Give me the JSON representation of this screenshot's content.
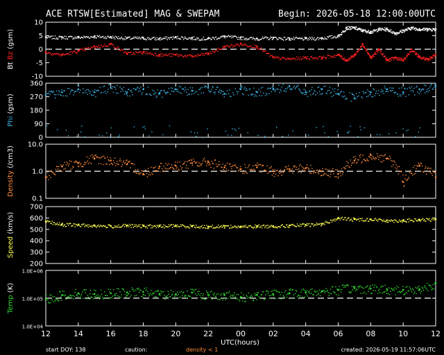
{
  "header": {
    "title": "ACE RTSW[Estimated] MAG & SWEPAM",
    "begin": "Begin: 2026-05-18 12:00:00UTC"
  },
  "footer": {
    "start_doy": "start DOY: 138",
    "caution": "caution:",
    "density_note": "density < 1",
    "created": "created: 2026-05-19 11:57:06UTC"
  },
  "colors": {
    "bt": "#ffffff",
    "bz": "#ff2020",
    "phi": "#3cb4e6",
    "density": "#ff8c3c",
    "speed": "#ffff50",
    "temp": "#32dc32"
  },
  "chart_data": {
    "type": "scatter",
    "x_ticks": [
      "12",
      "14",
      "16",
      "18",
      "20",
      "22",
      "00",
      "02",
      "04",
      "06",
      "08",
      "10",
      "12"
    ],
    "xlabel": "UTC(hours)",
    "x_range_hours": [
      0,
      24
    ],
    "panels": [
      {
        "id": "mag",
        "ylabel_parts": [
          {
            "text": "Bt",
            "color": "#ffffff"
          },
          {
            "text": "Bz",
            "color": "#ff2020"
          },
          {
            "text": "(gsm)",
            "color": "#ffffff"
          }
        ],
        "yticks": [
          "10",
          "5",
          "0",
          "-5",
          "-10"
        ],
        "ylim": [
          -10,
          10
        ],
        "log": false,
        "dashed_at": 0,
        "series": [
          {
            "name": "Bt",
            "color": "#ffffff",
            "x": [
              0,
              1,
              2,
              3,
              4,
              5,
              6,
              7,
              8,
              9,
              10,
              11,
              12,
              13,
              14,
              15,
              16,
              17,
              18,
              18.5,
              19,
              19.5,
              20,
              20.5,
              21,
              21.5,
              22,
              22.5,
              23,
              23.5,
              24
            ],
            "y": [
              4.5,
              4.5,
              4.5,
              4.8,
              4.6,
              4.2,
              4.2,
              4.0,
              4.5,
              4.2,
              4.0,
              4.8,
              4.3,
              4.0,
              4.3,
              4.0,
              4.0,
              4.2,
              5.0,
              8.0,
              8.0,
              7.0,
              6.5,
              7.5,
              7.5,
              6.0,
              7.0,
              8.0,
              7.5,
              7.5,
              7.5
            ]
          },
          {
            "name": "Bz",
            "color": "#ff2020",
            "x": [
              0,
              1,
              2,
              3,
              4,
              5,
              6,
              7,
              8,
              9,
              10,
              11,
              12,
              13,
              14,
              15,
              16,
              17,
              18,
              18.5,
              19,
              19.5,
              20,
              20.5,
              21,
              21.5,
              22,
              22.5,
              23,
              23.5,
              24
            ],
            "y": [
              -1,
              -2,
              -0.5,
              1,
              2,
              -1.5,
              -1,
              -2,
              -2,
              -2.5,
              -1.5,
              1,
              2,
              1,
              -3,
              -3.5,
              -3,
              -3,
              -2,
              -4,
              -2,
              2,
              -3,
              0,
              -4,
              -3,
              -4,
              0,
              -3,
              -3.5,
              -2
            ]
          }
        ]
      },
      {
        "id": "phi",
        "ylabel_parts": [
          {
            "text": "Phi",
            "color": "#3cb4e6"
          },
          {
            "text": "(gsm)",
            "color": "#ffffff"
          }
        ],
        "yticks": [
          "360",
          "270",
          "180",
          "90",
          "0"
        ],
        "ylim": [
          0,
          360
        ],
        "log": false,
        "dashed_at": null,
        "series": [
          {
            "name": "Phi",
            "color": "#3cb4e6",
            "x": [
              0,
              1,
              2,
              3,
              4,
              5,
              6,
              7,
              8,
              9,
              10,
              11,
              12,
              13,
              14,
              15,
              16,
              17,
              18,
              19,
              20,
              21,
              22,
              23,
              24
            ],
            "y": [
              280,
              300,
              320,
              300,
              330,
              300,
              320,
              290,
              320,
              310,
              330,
              290,
              320,
              300,
              320,
              340,
              300,
              320,
              290,
              260,
              300,
              320,
              300,
              320,
              340
            ]
          }
        ]
      },
      {
        "id": "density",
        "ylabel_parts": [
          {
            "text": "Density",
            "color": "#ff8c3c"
          },
          {
            "text": "(/cm3)",
            "color": "#ffffff"
          }
        ],
        "yticks": [
          "10.0",
          "1.0",
          "0.1"
        ],
        "ylim": [
          0.1,
          10
        ],
        "log": true,
        "dashed_at": 1,
        "series": [
          {
            "name": "Density",
            "color": "#ff8c3c",
            "x": [
              0,
              1,
              2,
              3,
              4,
              5,
              6,
              7,
              8,
              9,
              10,
              11,
              12,
              13,
              14,
              15,
              16,
              17,
              18,
              19,
              20,
              21,
              22,
              23,
              24
            ],
            "y": [
              0.6,
              1.5,
              2,
              3,
              2.5,
              1.8,
              0.8,
              1.5,
              1.6,
              2,
              2.2,
              1.4,
              1.2,
              1.4,
              1.0,
              1.2,
              1.3,
              1.0,
              0.8,
              2.5,
              4,
              3,
              0.4,
              1.6,
              0.6
            ]
          }
        ]
      },
      {
        "id": "speed",
        "ylabel_parts": [
          {
            "text": "Speed",
            "color": "#ffff50"
          },
          {
            "text": "(km/s)",
            "color": "#ffffff"
          }
        ],
        "yticks": [
          "700",
          "600",
          "500",
          "400",
          "300",
          "200"
        ],
        "ylim": [
          200,
          700
        ],
        "log": false,
        "dashed_at": null,
        "series": [
          {
            "name": "Speed",
            "color": "#ffff50",
            "x": [
              0,
              1,
              2,
              3,
              4,
              5,
              6,
              7,
              8,
              9,
              10,
              11,
              12,
              13,
              14,
              15,
              16,
              17,
              18,
              19,
              20,
              21,
              22,
              23,
              24
            ],
            "y": [
              570,
              545,
              540,
              535,
              530,
              535,
              530,
              530,
              535,
              530,
              525,
              530,
              525,
              530,
              530,
              535,
              540,
              550,
              600,
              590,
              590,
              580,
              580,
              585,
              590
            ]
          }
        ]
      },
      {
        "id": "temp",
        "ylabel_parts": [
          {
            "text": "Temp",
            "color": "#32dc32"
          },
          {
            "text": "(K)",
            "color": "#ffffff"
          }
        ],
        "yticks": [
          "1.0E+06",
          "1.0E+05",
          "1.0E+04"
        ],
        "ylim": [
          10000,
          1000000
        ],
        "log": true,
        "dashed_at": 100000,
        "series": [
          {
            "name": "Temp",
            "color": "#32dc32",
            "x": [
              0,
              1,
              2,
              3,
              4,
              5,
              6,
              7,
              8,
              9,
              10,
              11,
              12,
              13,
              14,
              15,
              16,
              17,
              18,
              19,
              20,
              21,
              22,
              23,
              24
            ],
            "y": [
              90000,
              130000,
              150000,
              140000,
              150000,
              160000,
              170000,
              140000,
              140000,
              160000,
              130000,
              130000,
              110000,
              130000,
              140000,
              150000,
              160000,
              180000,
              200000,
              230000,
              220000,
              210000,
              200000,
              210000,
              350000
            ]
          }
        ]
      }
    ]
  }
}
